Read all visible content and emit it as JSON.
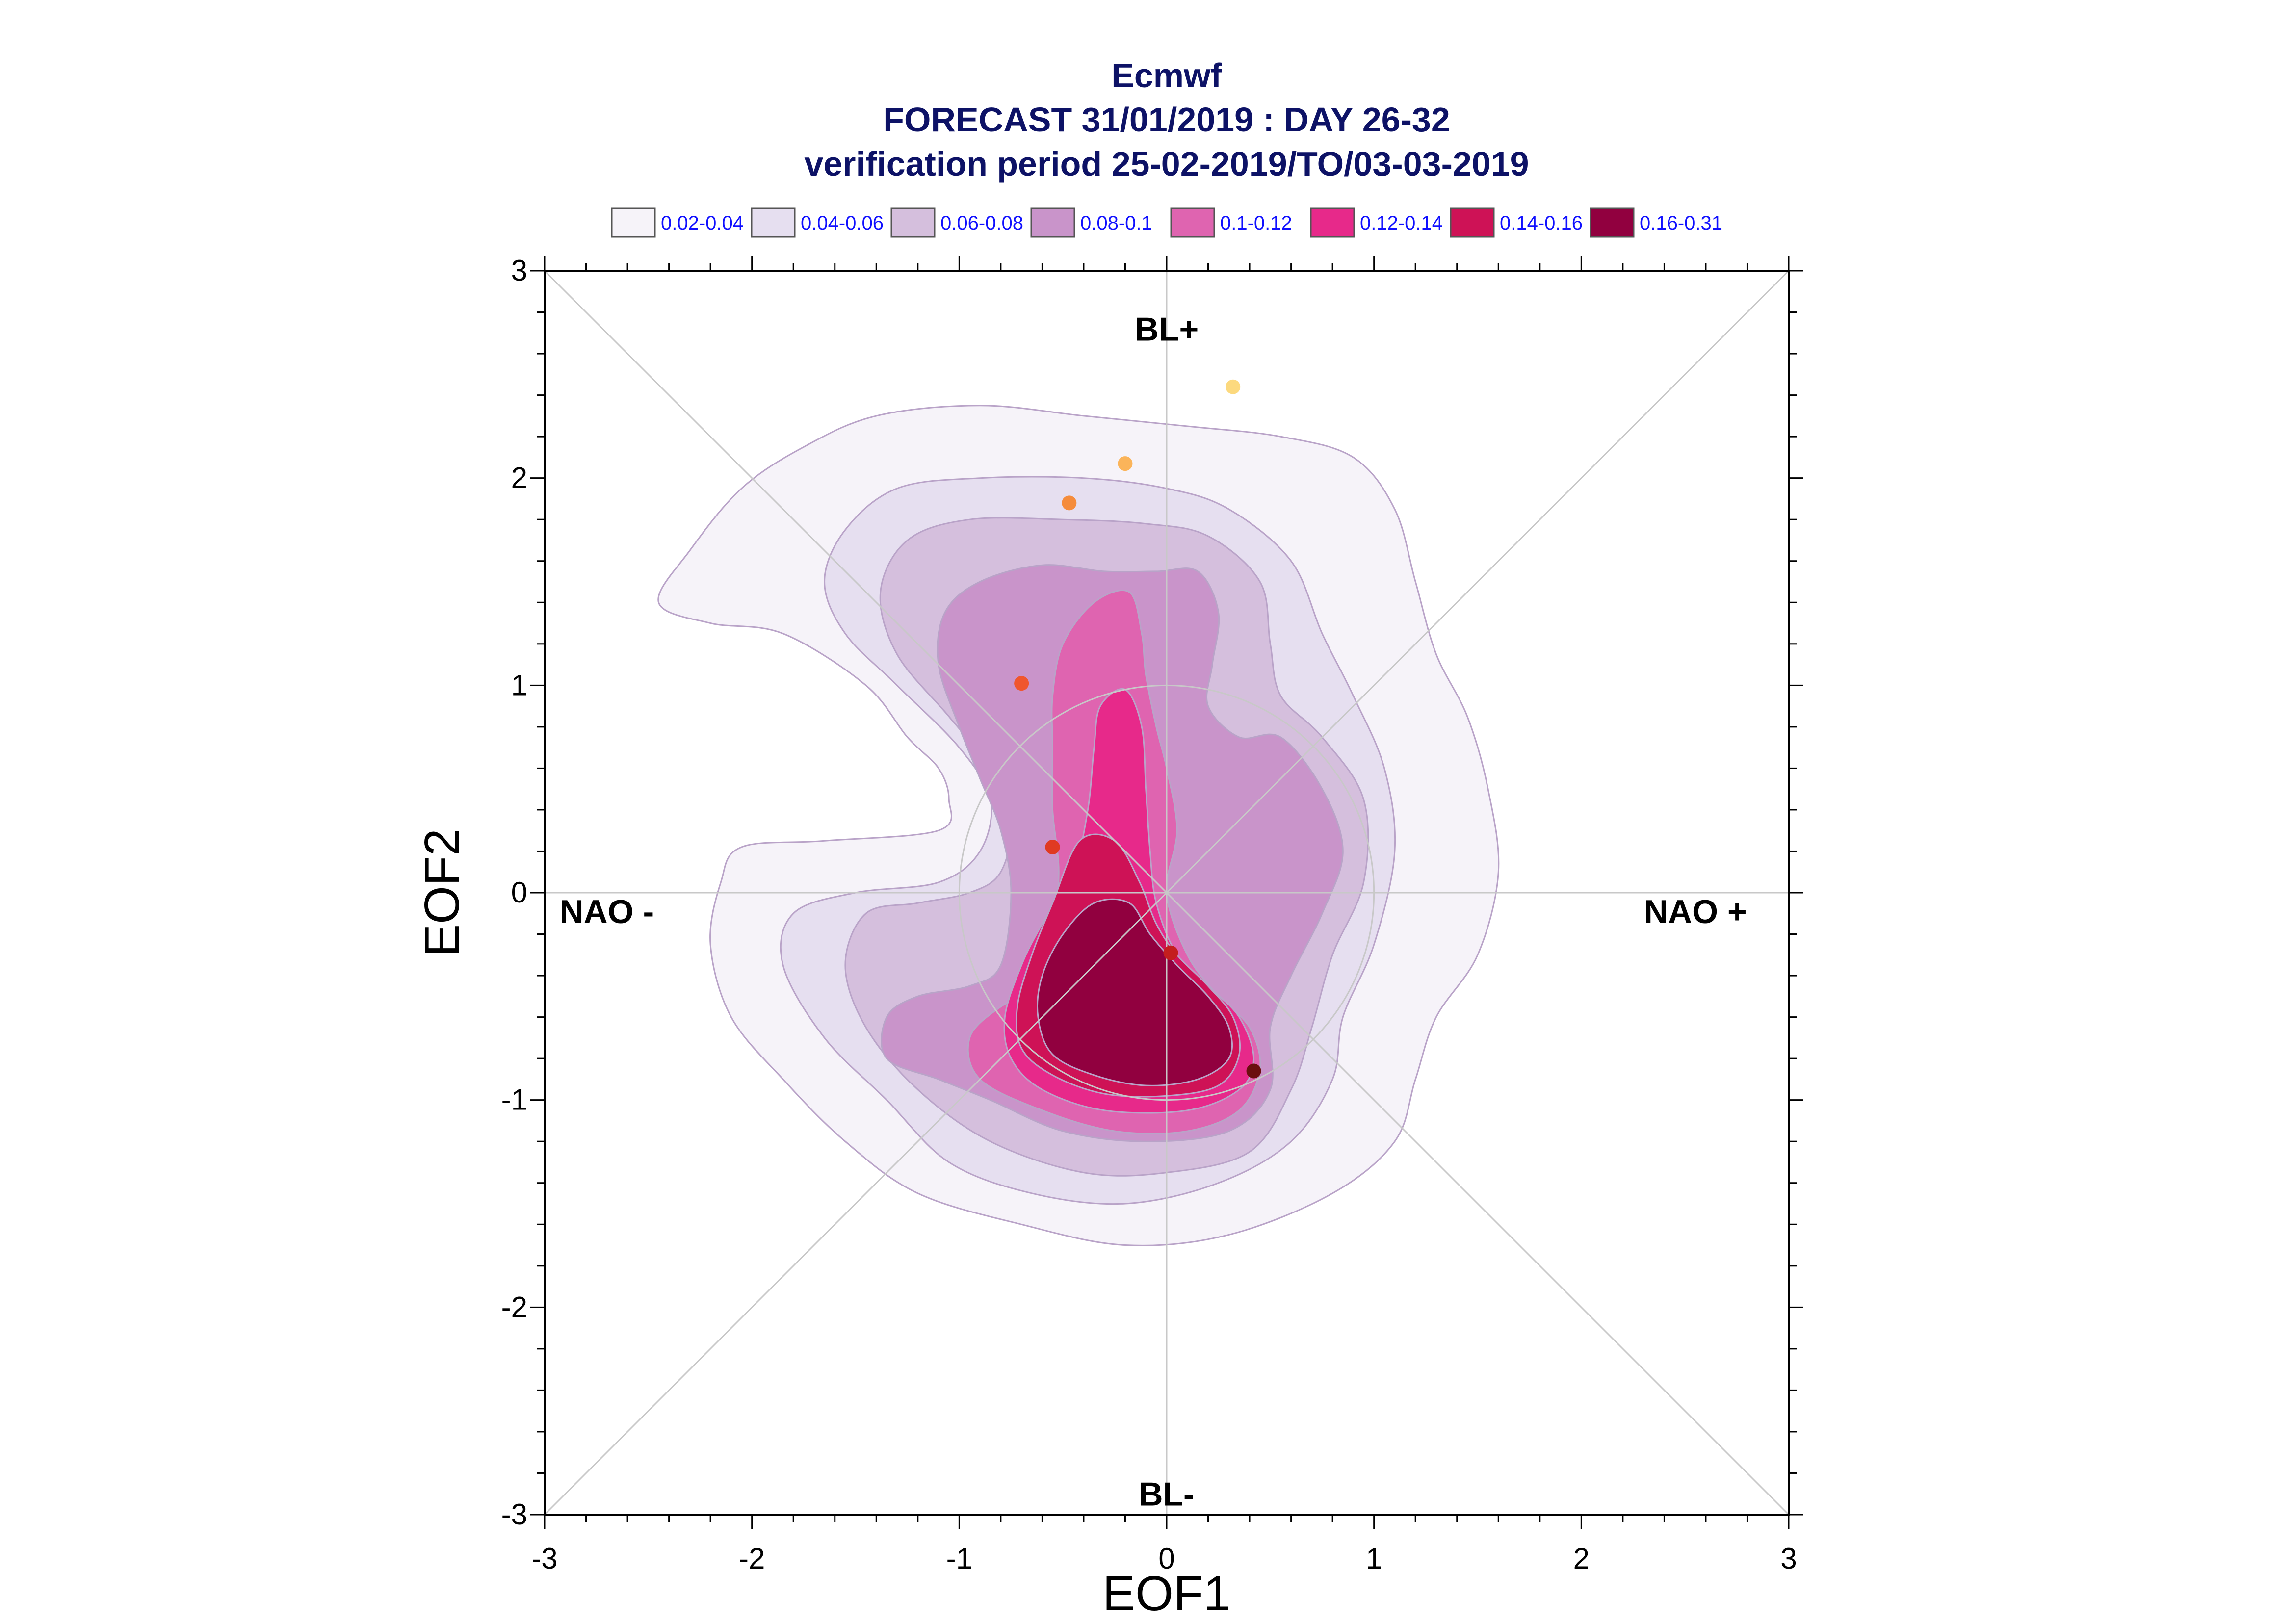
{
  "chart_data": {
    "type": "contour",
    "title_lines": [
      "Ecmwf",
      "FORECAST 31/01/2019 : DAY 26-32",
      "verification period 25-02-2019/TO/03-03-2019"
    ],
    "xlabel": "EOF1",
    "ylabel": "EOF2",
    "xlim": [
      -3,
      3
    ],
    "ylim": [
      -3,
      3
    ],
    "x_ticks": [
      "-3",
      "-2",
      "-1",
      "0",
      "1",
      "2",
      "3"
    ],
    "y_ticks": [
      "-3",
      "-2",
      "-1",
      "0",
      "1",
      "2",
      "3"
    ],
    "tick_values": [
      -3,
      -2,
      -1,
      0,
      1,
      2,
      3
    ],
    "region_labels": [
      {
        "text": "BL+",
        "x": 0.0,
        "y": 2.72
      },
      {
        "text": "BL-",
        "x": 0.0,
        "y": -2.9
      },
      {
        "text": "NAO -",
        "x": -2.7,
        "y": -0.09
      },
      {
        "text": "NAO +",
        "x": 2.55,
        "y": -0.09
      }
    ],
    "legend_placement": "top",
    "legend": [
      {
        "label": "0.02-0.04",
        "color": "#f6f3f9"
      },
      {
        "label": "0.04-0.06",
        "color": "#e6dff0"
      },
      {
        "label": "0.06-0.08",
        "color": "#d5bfdd"
      },
      {
        "label": "0.08-0.1",
        "color": "#c994ca"
      },
      {
        "label": "0.1-0.12",
        "color": "#df64b0"
      },
      {
        "label": "0.12-0.14",
        "color": "#e7298a"
      },
      {
        "label": "0.14-0.16",
        "color": "#ce1256"
      },
      {
        "label": "0.16-0.31",
        "color": "#91003f"
      }
    ],
    "contour_levels": [
      {
        "range": "0.02-0.04",
        "outline": [
          [
            -2.45,
            1.4
          ],
          [
            -2.3,
            1.65
          ],
          [
            -2.05,
            1.95
          ],
          [
            -1.75,
            2.15
          ],
          [
            -1.4,
            2.3
          ],
          [
            -0.9,
            2.35
          ],
          [
            -0.4,
            2.3
          ],
          [
            0.1,
            2.25
          ],
          [
            0.55,
            2.2
          ],
          [
            0.9,
            2.1
          ],
          [
            1.1,
            1.85
          ],
          [
            1.2,
            1.5
          ],
          [
            1.3,
            1.15
          ],
          [
            1.45,
            0.85
          ],
          [
            1.55,
            0.5
          ],
          [
            1.6,
            0.1
          ],
          [
            1.5,
            -0.3
          ],
          [
            1.3,
            -0.6
          ],
          [
            1.2,
            -0.9
          ],
          [
            1.1,
            -1.2
          ],
          [
            0.8,
            -1.45
          ],
          [
            0.3,
            -1.65
          ],
          [
            -0.2,
            -1.7
          ],
          [
            -0.7,
            -1.6
          ],
          [
            -1.2,
            -1.45
          ],
          [
            -1.55,
            -1.2
          ],
          [
            -1.85,
            -0.9
          ],
          [
            -2.1,
            -0.6
          ],
          [
            -2.2,
            -0.25
          ],
          [
            -2.15,
            0.05
          ],
          [
            -2.05,
            0.22
          ],
          [
            -1.65,
            0.25
          ],
          [
            -1.1,
            0.3
          ],
          [
            -1.05,
            0.45
          ],
          [
            -1.1,
            0.6
          ],
          [
            -1.25,
            0.75
          ],
          [
            -1.45,
            1.0
          ],
          [
            -1.85,
            1.25
          ],
          [
            -2.2,
            1.3
          ]
        ]
      },
      {
        "range": "0.04-0.06",
        "outline": [
          [
            -1.65,
            1.5
          ],
          [
            -1.55,
            1.75
          ],
          [
            -1.3,
            1.95
          ],
          [
            -0.9,
            2.0
          ],
          [
            -0.4,
            2.0
          ],
          [
            0.0,
            1.95
          ],
          [
            0.3,
            1.85
          ],
          [
            0.6,
            1.6
          ],
          [
            0.75,
            1.25
          ],
          [
            0.9,
            0.95
          ],
          [
            1.05,
            0.6
          ],
          [
            1.1,
            0.2
          ],
          [
            1.0,
            -0.25
          ],
          [
            0.85,
            -0.6
          ],
          [
            0.8,
            -0.9
          ],
          [
            0.6,
            -1.2
          ],
          [
            0.25,
            -1.4
          ],
          [
            -0.2,
            -1.5
          ],
          [
            -0.65,
            -1.45
          ],
          [
            -1.05,
            -1.3
          ],
          [
            -1.35,
            -1.0
          ],
          [
            -1.65,
            -0.7
          ],
          [
            -1.85,
            -0.35
          ],
          [
            -1.8,
            -0.1
          ],
          [
            -1.5,
            0.0
          ],
          [
            -1.1,
            0.05
          ],
          [
            -0.9,
            0.2
          ],
          [
            -0.85,
            0.45
          ],
          [
            -1.0,
            0.7
          ],
          [
            -1.3,
            1.0
          ],
          [
            -1.55,
            1.25
          ]
        ]
      },
      {
        "range": "0.06-0.08",
        "outline": [
          [
            -1.38,
            1.45
          ],
          [
            -1.25,
            1.7
          ],
          [
            -0.95,
            1.8
          ],
          [
            -0.5,
            1.8
          ],
          [
            -0.1,
            1.78
          ],
          [
            0.2,
            1.72
          ],
          [
            0.45,
            1.5
          ],
          [
            0.5,
            1.2
          ],
          [
            0.55,
            0.95
          ],
          [
            0.75,
            0.75
          ],
          [
            0.95,
            0.45
          ],
          [
            0.95,
            0.05
          ],
          [
            0.8,
            -0.3
          ],
          [
            0.7,
            -0.65
          ],
          [
            0.6,
            -0.95
          ],
          [
            0.4,
            -1.25
          ],
          [
            0.0,
            -1.35
          ],
          [
            -0.4,
            -1.35
          ],
          [
            -0.85,
            -1.2
          ],
          [
            -1.2,
            -0.95
          ],
          [
            -1.45,
            -0.65
          ],
          [
            -1.55,
            -0.35
          ],
          [
            -1.45,
            -0.1
          ],
          [
            -1.2,
            -0.05
          ],
          [
            -0.95,
            0.0
          ],
          [
            -0.8,
            0.1
          ],
          [
            -0.75,
            0.35
          ],
          [
            -0.85,
            0.6
          ],
          [
            -1.05,
            0.85
          ],
          [
            -1.3,
            1.15
          ]
        ]
      },
      {
        "range": "0.08-0.1",
        "outline": [
          [
            -1.07,
            1.35
          ],
          [
            -0.9,
            1.5
          ],
          [
            -0.6,
            1.58
          ],
          [
            -0.3,
            1.55
          ],
          [
            -0.05,
            1.55
          ],
          [
            0.15,
            1.55
          ],
          [
            0.25,
            1.35
          ],
          [
            0.22,
            1.1
          ],
          [
            0.2,
            0.9
          ],
          [
            0.35,
            0.75
          ],
          [
            0.55,
            0.75
          ],
          [
            0.75,
            0.5
          ],
          [
            0.85,
            0.2
          ],
          [
            0.75,
            -0.1
          ],
          [
            0.6,
            -0.4
          ],
          [
            0.5,
            -0.65
          ],
          [
            0.5,
            -0.95
          ],
          [
            0.3,
            -1.15
          ],
          [
            -0.1,
            -1.2
          ],
          [
            -0.5,
            -1.15
          ],
          [
            -0.85,
            -1.0
          ],
          [
            -1.1,
            -0.9
          ],
          [
            -1.35,
            -0.8
          ],
          [
            -1.35,
            -0.6
          ],
          [
            -1.2,
            -0.5
          ],
          [
            -0.95,
            -0.45
          ],
          [
            -0.8,
            -0.35
          ],
          [
            -0.75,
            0.0
          ],
          [
            -0.8,
            0.3
          ],
          [
            -0.9,
            0.55
          ],
          [
            -1.0,
            0.8
          ],
          [
            -1.1,
            1.1
          ]
        ]
      },
      {
        "range": "0.1-0.12",
        "outline": [
          [
            -0.5,
            1.2
          ],
          [
            -0.35,
            1.4
          ],
          [
            -0.18,
            1.45
          ],
          [
            -0.12,
            1.25
          ],
          [
            -0.1,
            1.05
          ],
          [
            -0.05,
            0.8
          ],
          [
            0.0,
            0.6
          ],
          [
            0.05,
            0.3
          ],
          [
            0.0,
            0.0
          ],
          [
            0.1,
            -0.3
          ],
          [
            0.25,
            -0.5
          ],
          [
            0.4,
            -0.65
          ],
          [
            0.45,
            -0.85
          ],
          [
            0.35,
            -1.05
          ],
          [
            0.1,
            -1.15
          ],
          [
            -0.25,
            -1.15
          ],
          [
            -0.6,
            -1.05
          ],
          [
            -0.9,
            -0.9
          ],
          [
            -0.95,
            -0.7
          ],
          [
            -0.8,
            -0.55
          ],
          [
            -0.6,
            -0.45
          ],
          [
            -0.55,
            -0.2
          ],
          [
            -0.52,
            0.1
          ],
          [
            -0.55,
            0.4
          ],
          [
            -0.55,
            0.7
          ],
          [
            -0.55,
            0.95
          ]
        ]
      },
      {
        "range": "0.12-0.14",
        "outline": [
          [
            -0.32,
            0.9
          ],
          [
            -0.2,
            0.98
          ],
          [
            -0.12,
            0.8
          ],
          [
            -0.1,
            0.5
          ],
          [
            -0.08,
            0.2
          ],
          [
            -0.05,
            -0.05
          ],
          [
            0.05,
            -0.3
          ],
          [
            0.2,
            -0.45
          ],
          [
            0.35,
            -0.6
          ],
          [
            0.42,
            -0.8
          ],
          [
            0.35,
            -0.95
          ],
          [
            0.1,
            -1.05
          ],
          [
            -0.3,
            -1.05
          ],
          [
            -0.6,
            -0.95
          ],
          [
            -0.75,
            -0.8
          ],
          [
            -0.78,
            -0.6
          ],
          [
            -0.7,
            -0.35
          ],
          [
            -0.6,
            -0.15
          ],
          [
            -0.45,
            0.1
          ],
          [
            -0.38,
            0.4
          ],
          [
            -0.35,
            0.7
          ]
        ]
      },
      {
        "range": "0.14-0.16",
        "outline": [
          [
            -0.42,
            0.25
          ],
          [
            -0.25,
            0.25
          ],
          [
            -0.13,
            0.05
          ],
          [
            -0.05,
            -0.15
          ],
          [
            0.05,
            -0.3
          ],
          [
            0.2,
            -0.45
          ],
          [
            0.32,
            -0.6
          ],
          [
            0.35,
            -0.78
          ],
          [
            0.25,
            -0.93
          ],
          [
            0.0,
            -0.98
          ],
          [
            -0.3,
            -0.97
          ],
          [
            -0.55,
            -0.88
          ],
          [
            -0.7,
            -0.75
          ],
          [
            -0.72,
            -0.55
          ],
          [
            -0.65,
            -0.3
          ],
          [
            -0.55,
            -0.05
          ]
        ]
      },
      {
        "range": "0.16-0.31",
        "outline": [
          [
            -0.35,
            -0.05
          ],
          [
            -0.18,
            -0.05
          ],
          [
            -0.08,
            -0.2
          ],
          [
            0.05,
            -0.35
          ],
          [
            0.2,
            -0.5
          ],
          [
            0.3,
            -0.65
          ],
          [
            0.3,
            -0.8
          ],
          [
            0.15,
            -0.9
          ],
          [
            -0.1,
            -0.93
          ],
          [
            -0.35,
            -0.88
          ],
          [
            -0.55,
            -0.78
          ],
          [
            -0.62,
            -0.6
          ],
          [
            -0.6,
            -0.4
          ],
          [
            -0.5,
            -0.2
          ]
        ]
      }
    ],
    "points": [
      {
        "x": 0.32,
        "y": 2.44,
        "color": "#fcd97e"
      },
      {
        "x": -0.2,
        "y": 2.07,
        "color": "#fbb45a"
      },
      {
        "x": -0.47,
        "y": 1.88,
        "color": "#f58c3c"
      },
      {
        "x": -0.7,
        "y": 1.01,
        "color": "#f0562e"
      },
      {
        "x": -0.55,
        "y": 0.22,
        "color": "#e03a22"
      },
      {
        "x": 0.02,
        "y": -0.29,
        "color": "#c41e1e"
      },
      {
        "x": 0.42,
        "y": -0.86,
        "color": "#6b0f0f"
      }
    ],
    "grid": false,
    "diagonals": true,
    "reference_circle_radius": 1.0
  }
}
